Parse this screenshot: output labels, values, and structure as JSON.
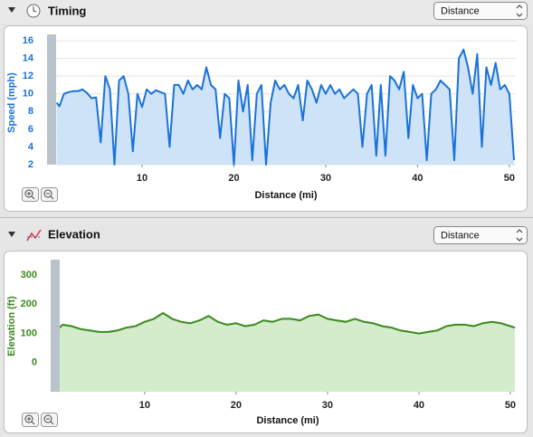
{
  "panels": [
    {
      "title": "Timing",
      "select": "Distance"
    },
    {
      "title": "Elevation",
      "select": "Distance"
    }
  ],
  "chart_data": [
    {
      "type": "line",
      "x_label": "Distance (mi)",
      "y_label": "Speed (mph)",
      "color": "#1a72d9",
      "area_color": "#cfe3f8",
      "grid": true,
      "xlim": [
        0.64,
        50.7
      ],
      "xticks": [
        10,
        20,
        30,
        40,
        50
      ],
      "ylim": [
        2,
        16
      ],
      "yticks": [
        2,
        4,
        6,
        8,
        10,
        12,
        14,
        16
      ],
      "x": [
        0.7,
        1,
        1.5,
        2,
        2.5,
        3,
        3.5,
        4,
        4.5,
        5,
        5.5,
        6,
        6.5,
        7,
        7.5,
        8,
        8.5,
        9,
        9.5,
        10,
        10.5,
        11,
        11.5,
        12,
        12.5,
        13,
        13.5,
        14,
        14.5,
        15,
        15.5,
        16,
        16.5,
        17,
        17.5,
        18,
        18.5,
        19,
        19.5,
        20,
        20.5,
        21,
        21.5,
        22,
        22.5,
        23,
        23.5,
        24,
        24.5,
        25,
        25.5,
        26,
        26.5,
        27,
        27.5,
        28,
        28.5,
        29,
        29.5,
        30,
        30.5,
        31,
        31.5,
        32,
        32.5,
        33,
        33.5,
        34,
        34.5,
        35,
        35.5,
        36,
        36.5,
        37,
        37.5,
        38,
        38.5,
        39,
        39.5,
        40,
        40.5,
        41,
        41.5,
        42,
        42.5,
        43,
        43.5,
        44,
        44.5,
        45,
        45.5,
        46,
        46.5,
        47,
        47.5,
        48,
        48.5,
        49,
        49.5,
        50,
        50.5
      ],
      "values": [
        9,
        8.6,
        10,
        10.2,
        10.3,
        10.3,
        10.5,
        10.1,
        9.5,
        9.6,
        4.5,
        12,
        10.5,
        2,
        11.5,
        12,
        10,
        3.5,
        10,
        8.5,
        10.5,
        10,
        10.4,
        10.2,
        10,
        4,
        11,
        11,
        10,
        11.5,
        10.5,
        11,
        10.5,
        13,
        11,
        10.5,
        5,
        10,
        9.5,
        2,
        11.5,
        8,
        11,
        2.5,
        10,
        11,
        2,
        9,
        11.5,
        10.5,
        11,
        10,
        9.5,
        11,
        7,
        11.5,
        10.5,
        9,
        11,
        10,
        11,
        10,
        10.5,
        9.5,
        10,
        10.5,
        10,
        4,
        10,
        11,
        3,
        11,
        3,
        12,
        11.5,
        10.5,
        12.5,
        5,
        11,
        9.5,
        10,
        2.5,
        10,
        10.5,
        11.5,
        11,
        10.5,
        2.5,
        14,
        15,
        13,
        10,
        14.5,
        4,
        13,
        11,
        13.5,
        10.5,
        11,
        10,
        2.5
      ]
    },
    {
      "type": "line",
      "x_label": "Distance (mi)",
      "y_label": "Elevation (ft)",
      "color": "#3a8a1e",
      "area_color": "#d4ebcc",
      "grid": false,
      "xlim": [
        0.7,
        50.6
      ],
      "xticks": [
        10,
        20,
        30,
        40,
        50
      ],
      "ylim": [
        -100,
        350
      ],
      "yticks": [
        0,
        100,
        200,
        300
      ],
      "x": [
        0.7,
        1,
        2,
        3,
        4,
        5,
        6,
        7,
        8,
        9,
        10,
        11,
        12,
        13,
        14,
        15,
        16,
        17,
        18,
        19,
        20,
        21,
        22,
        23,
        24,
        25,
        26,
        27,
        28,
        29,
        30,
        31,
        32,
        33,
        34,
        35,
        36,
        37,
        38,
        39,
        40,
        41,
        42,
        43,
        44,
        45,
        46,
        47,
        48,
        49,
        50,
        50.5
      ],
      "values": [
        120,
        130,
        125,
        115,
        110,
        105,
        105,
        110,
        120,
        125,
        140,
        150,
        170,
        150,
        140,
        135,
        145,
        160,
        140,
        130,
        135,
        125,
        130,
        145,
        140,
        150,
        150,
        145,
        160,
        165,
        150,
        145,
        140,
        150,
        140,
        135,
        125,
        120,
        110,
        105,
        100,
        105,
        110,
        125,
        130,
        130,
        125,
        135,
        140,
        135,
        125,
        120
      ]
    }
  ]
}
